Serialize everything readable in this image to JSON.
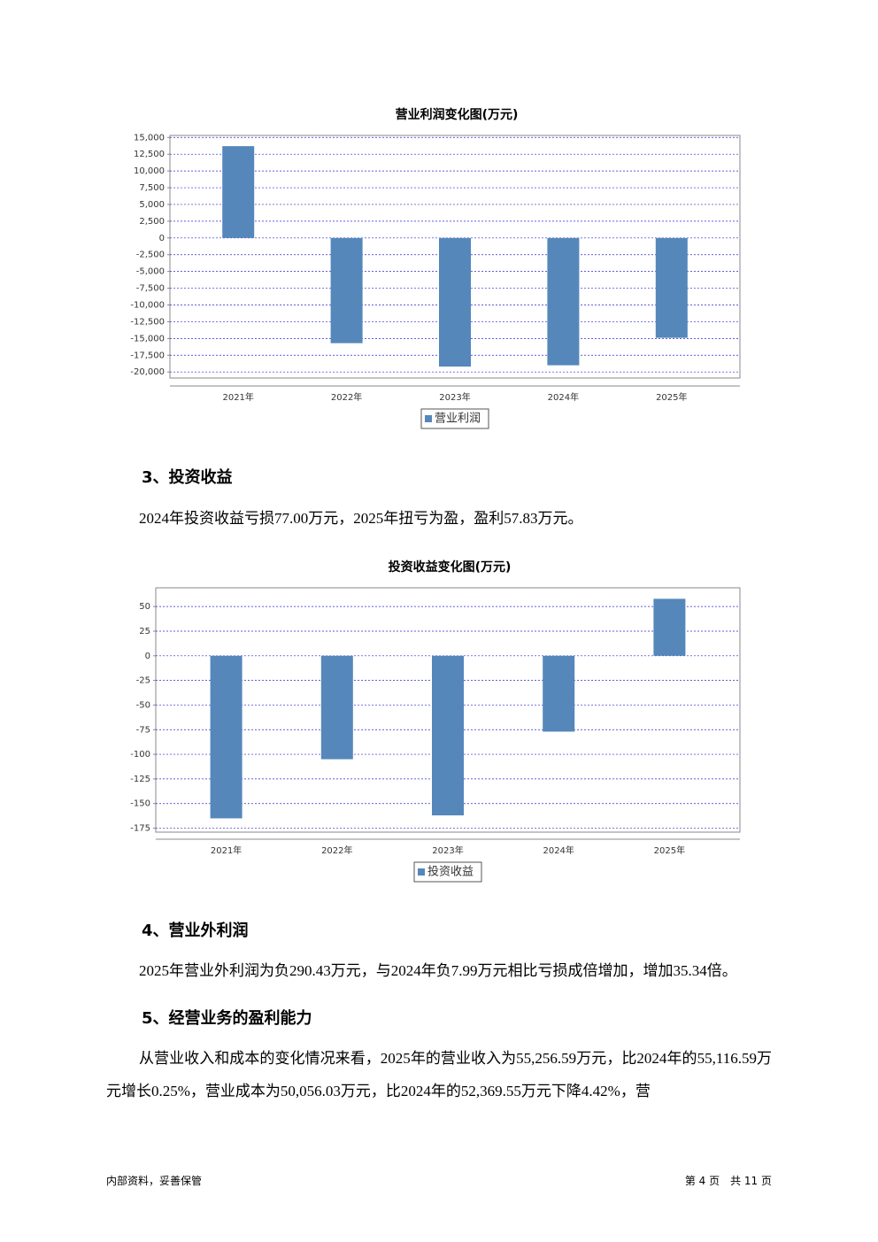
{
  "chart_data": [
    {
      "type": "bar",
      "title": "营业利润变化图(万元)",
      "categories": [
        "2021年",
        "2022年",
        "2023年",
        "2024年",
        "2025年"
      ],
      "series": [
        {
          "name": "营业利润",
          "color": "#5587bb",
          "values": [
            13700,
            -15700,
            -19200,
            -19000,
            -14900
          ]
        }
      ],
      "ylim": [
        -20900,
        15300
      ],
      "yticks": [
        {
          "value": 15000,
          "label": "15,000"
        },
        {
          "value": 12500,
          "label": "12,500"
        },
        {
          "value": 10000,
          "label": "10,000"
        },
        {
          "value": 7500,
          "label": "7,500"
        },
        {
          "value": 5000,
          "label": "5,000"
        },
        {
          "value": 2500,
          "label": "2,500"
        },
        0,
        {
          "value": -2500,
          "label": "-2,500"
        },
        {
          "value": -5000,
          "label": "-5,000"
        },
        {
          "value": -7500,
          "label": "-7,500"
        },
        {
          "value": -10000,
          "label": "-10,000"
        },
        {
          "value": -12500,
          "label": "-12,500"
        },
        {
          "value": -15000,
          "label": "-15,000"
        },
        {
          "value": -17500,
          "label": "-17,500"
        },
        {
          "value": -20000,
          "label": "-20,000"
        }
      ],
      "grid": true
    },
    {
      "type": "bar",
      "title": "投资收益变化图(万元)",
      "categories": [
        "2021年",
        "2022年",
        "2023年",
        "2024年",
        "2025年"
      ],
      "series": [
        {
          "name": "投资收益",
          "color": "#5587bb",
          "values": [
            -165,
            -105,
            -162,
            -77,
            57.83
          ]
        }
      ],
      "ylim": [
        -179,
        69
      ],
      "yticks": [
        50,
        25,
        0,
        -25,
        -50,
        -75,
        -100,
        -125,
        -150,
        -175
      ],
      "grid": true
    }
  ],
  "sections": [
    {
      "heading": "3、投资收益",
      "paragraph": "2024年投资收益亏损77.00万元，2025年扭亏为盈，盈利57.83万元。"
    },
    {
      "heading": "4、营业外利润",
      "paragraph": "2025年营业外利润为负290.43万元，与2024年负7.99万元相比亏损成倍增加，增加35.34倍。"
    },
    {
      "heading": "5、经营业务的盈利能力",
      "paragraph": "从营业收入和成本的变化情况来看，2025年的营业收入为55,256.59万元，比2024年的55,116.59万元增长0.25%，营业成本为50,056.03万元，比2024年的52,369.55万元下降4.42%，营"
    }
  ],
  "footer": {
    "left": "内部资料，妥善保管",
    "right": "第 4 页　共 11 页"
  }
}
